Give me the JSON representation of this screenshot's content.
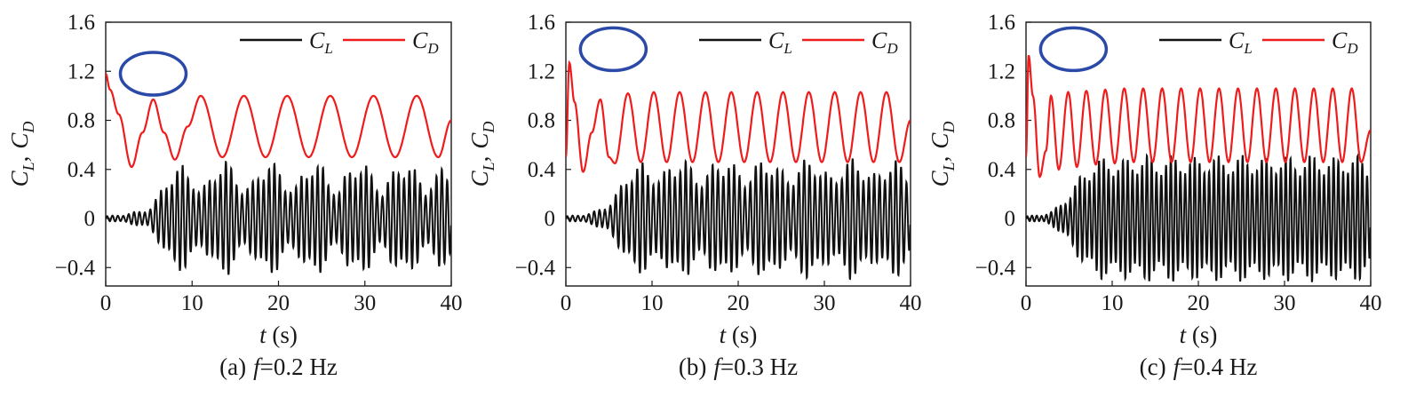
{
  "figure": {
    "panels": [
      {
        "caption_prefix": "(a)",
        "caption_var": "f",
        "caption_value": "=0.2  Hz",
        "ylabel_a": "C",
        "ylabel_a_sub": "L",
        "ylabel_sep": ",",
        "ylabel_b": "C",
        "ylabel_b_sub": "D",
        "xlabel_var": "t",
        "xlabel_unit": " (s)",
        "legend": [
          {
            "symbol": "C",
            "sub": "L",
            "color": "#111111"
          },
          {
            "symbol": "C",
            "sub": "D",
            "color": "#ee1c1c"
          }
        ]
      },
      {
        "caption_prefix": "(b)",
        "caption_var": "f",
        "caption_value": "=0.3 Hz",
        "ylabel_a": "C",
        "ylabel_a_sub": "L",
        "ylabel_sep": ",",
        "ylabel_b": "C",
        "ylabel_b_sub": "D",
        "xlabel_var": "t",
        "xlabel_unit": " (s)",
        "legend": [
          {
            "symbol": "C",
            "sub": "L",
            "color": "#111111"
          },
          {
            "symbol": "C",
            "sub": "D",
            "color": "#ee1c1c"
          }
        ]
      },
      {
        "caption_prefix": "(c)",
        "caption_var": "f",
        "caption_value": "=0.4 Hz",
        "ylabel_a": "C",
        "ylabel_a_sub": "L",
        "ylabel_sep": ",",
        "ylabel_b": "C",
        "ylabel_b_sub": "D",
        "xlabel_var": "t",
        "xlabel_unit": " (s)",
        "legend": [
          {
            "symbol": "C",
            "sub": "L",
            "color": "#111111"
          },
          {
            "symbol": "C",
            "sub": "D",
            "color": "#ee1c1c"
          }
        ]
      }
    ]
  },
  "chart_data": [
    {
      "type": "line",
      "xlim": [
        0,
        40
      ],
      "ylim": [
        -0.55,
        1.6
      ],
      "xticks": [
        0,
        10,
        20,
        30,
        40
      ],
      "xtick_labels": [
        "0",
        "10",
        "20",
        "30",
        "40"
      ],
      "yticks": [
        -0.4,
        0,
        0.4,
        0.8,
        1.2,
        1.6
      ],
      "ytick_labels": [
        "−0.4",
        "0",
        "0.4",
        "0.8",
        "1.2",
        "1.6"
      ],
      "grid": false,
      "legend_position": "top-right",
      "highlight_ellipse": {
        "center": [
          5.5,
          1.18
        ],
        "color": "#2b4aa8"
      },
      "series": [
        {
          "name": "C_D",
          "color": "#ee1c1c",
          "x": [
            0,
            0.5,
            1.5,
            3,
            4.25,
            5.5,
            6.75,
            8,
            9.5,
            11,
            13.5,
            16,
            18.5,
            21,
            23.5,
            26,
            28.5,
            31,
            33.5,
            36,
            38.5,
            40
          ],
          "y": [
            1.18,
            1.05,
            0.85,
            0.42,
            0.7,
            0.97,
            0.7,
            0.48,
            0.75,
            1.0,
            0.5,
            1.0,
            0.5,
            1.0,
            0.5,
            1.0,
            0.5,
            1.0,
            0.5,
            1.0,
            0.5,
            0.8
          ]
        },
        {
          "name": "C_L",
          "color": "#111111",
          "x": [
            0,
            2,
            3,
            4,
            5,
            6,
            7,
            8,
            9,
            10,
            11,
            12,
            13,
            14,
            15,
            16,
            17,
            18,
            19,
            20,
            21,
            22,
            23,
            24,
            25,
            26,
            27,
            28,
            29,
            30,
            31,
            32,
            33,
            34,
            35,
            36,
            37,
            38,
            39,
            40
          ],
          "y_amplitude": [
            0.02,
            0.03,
            0.05,
            0.06,
            0.08,
            0.18,
            0.32,
            0.42,
            0.44,
            0.36,
            0.22,
            0.34,
            0.46,
            0.48,
            0.38,
            0.24,
            0.3,
            0.44,
            0.48,
            0.42,
            0.28,
            0.26,
            0.42,
            0.48,
            0.44,
            0.3,
            0.24,
            0.4,
            0.48,
            0.46,
            0.34,
            0.24,
            0.36,
            0.46,
            0.47,
            0.38,
            0.26,
            0.32,
            0.44,
            0.4
          ],
          "oscillation_frequency_hz": 1.6
        }
      ]
    },
    {
      "type": "line",
      "xlim": [
        0,
        40
      ],
      "ylim": [
        -0.55,
        1.6
      ],
      "xticks": [
        0,
        10,
        20,
        30,
        40
      ],
      "xtick_labels": [
        "0",
        "10",
        "20",
        "30",
        "40"
      ],
      "yticks": [
        -0.4,
        0,
        0.4,
        0.8,
        1.2,
        1.6
      ],
      "ytick_labels": [
        "−0.4",
        "0",
        "0.4",
        "0.8",
        "1.2",
        "1.6"
      ],
      "grid": false,
      "legend_position": "top-right",
      "highlight_ellipse": {
        "center": [
          5.5,
          1.38
        ],
        "color": "#2b4aa8"
      },
      "series": [
        {
          "name": "C_D",
          "color": "#ee1c1c",
          "x": [
            0,
            0.4,
            1,
            2,
            3,
            4,
            5,
            5.7,
            7.2,
            8.7,
            10.2,
            11.7,
            13.2,
            14.7,
            16.2,
            17.7,
            19.2,
            20.7,
            22.2,
            23.7,
            25.2,
            26.7,
            28.2,
            29.7,
            31.2,
            32.7,
            34.2,
            35.7,
            37.2,
            38.7,
            40
          ],
          "y": [
            0.5,
            1.27,
            0.95,
            0.38,
            0.7,
            0.97,
            0.5,
            0.45,
            1.02,
            0.46,
            1.03,
            0.46,
            1.03,
            0.46,
            1.03,
            0.46,
            1.03,
            0.46,
            1.03,
            0.46,
            1.03,
            0.46,
            1.03,
            0.46,
            1.03,
            0.46,
            1.03,
            0.46,
            1.03,
            0.46,
            0.8
          ]
        },
        {
          "name": "C_L",
          "color": "#111111",
          "x": [
            0,
            2,
            3,
            4,
            5,
            6,
            7,
            8,
            9,
            10,
            11,
            12,
            13,
            14,
            15,
            16,
            17,
            18,
            19,
            20,
            21,
            22,
            23,
            24,
            25,
            26,
            27,
            28,
            29,
            30,
            31,
            32,
            33,
            34,
            35,
            36,
            37,
            38,
            39,
            40
          ],
          "y_amplitude": [
            0.02,
            0.03,
            0.05,
            0.08,
            0.12,
            0.22,
            0.36,
            0.44,
            0.46,
            0.4,
            0.34,
            0.44,
            0.5,
            0.48,
            0.38,
            0.34,
            0.44,
            0.5,
            0.48,
            0.4,
            0.34,
            0.44,
            0.5,
            0.48,
            0.4,
            0.34,
            0.44,
            0.5,
            0.48,
            0.4,
            0.34,
            0.44,
            0.5,
            0.48,
            0.4,
            0.36,
            0.44,
            0.5,
            0.44,
            0.36
          ],
          "oscillation_frequency_hz": 1.6
        }
      ]
    },
    {
      "type": "line",
      "xlim": [
        0,
        40
      ],
      "ylim": [
        -0.55,
        1.6
      ],
      "xticks": [
        0,
        10,
        20,
        30,
        40
      ],
      "xtick_labels": [
        "0",
        "10",
        "20",
        "30",
        "40"
      ],
      "yticks": [
        -0.4,
        0,
        0.4,
        0.8,
        1.2,
        1.6
      ],
      "ytick_labels": [
        "−0.4",
        "0",
        "0.4",
        "0.8",
        "1.2",
        "1.6"
      ],
      "grid": false,
      "legend_position": "top-right",
      "highlight_ellipse": {
        "center": [
          5.5,
          1.38
        ],
        "color": "#2b4aa8"
      },
      "series": [
        {
          "name": "C_D",
          "color": "#ee1c1c",
          "x": [
            0,
            0.3,
            0.8,
            1.6,
            2.3,
            2.9,
            3.8,
            4.9,
            5.9,
            7.0,
            8.1,
            9.2,
            10.3,
            11.4,
            12.5,
            13.6,
            14.7,
            15.8,
            16.9,
            18.0,
            19.1,
            20.2,
            21.3,
            22.4,
            23.5,
            24.6,
            25.7,
            26.8,
            27.9,
            29.0,
            30.1,
            31.2,
            32.3,
            33.4,
            34.5,
            35.6,
            36.7,
            37.8,
            38.9,
            40
          ],
          "y": [
            0.5,
            1.33,
            1.0,
            0.34,
            0.55,
            1.0,
            0.4,
            1.03,
            0.42,
            1.04,
            0.44,
            1.05,
            0.45,
            1.06,
            0.46,
            1.06,
            0.46,
            1.06,
            0.46,
            1.06,
            0.46,
            1.06,
            0.46,
            1.06,
            0.46,
            1.06,
            0.46,
            1.06,
            0.46,
            1.06,
            0.46,
            1.06,
            0.46,
            1.06,
            0.46,
            1.06,
            0.46,
            1.06,
            0.46,
            0.72
          ]
        },
        {
          "name": "C_L",
          "color": "#111111",
          "x": [
            0,
            2,
            3,
            4,
            5,
            6,
            7,
            8,
            9,
            10,
            11,
            12,
            13,
            14,
            15,
            16,
            17,
            18,
            19,
            20,
            21,
            22,
            23,
            24,
            25,
            26,
            27,
            28,
            29,
            30,
            31,
            32,
            33,
            34,
            35,
            36,
            37,
            38,
            39,
            40
          ],
          "y_amplitude": [
            0.02,
            0.03,
            0.06,
            0.12,
            0.2,
            0.32,
            0.42,
            0.48,
            0.5,
            0.5,
            0.48,
            0.5,
            0.52,
            0.52,
            0.5,
            0.5,
            0.52,
            0.52,
            0.5,
            0.5,
            0.52,
            0.52,
            0.5,
            0.5,
            0.52,
            0.52,
            0.5,
            0.5,
            0.52,
            0.52,
            0.5,
            0.5,
            0.52,
            0.52,
            0.5,
            0.5,
            0.52,
            0.52,
            0.5,
            0.46
          ],
          "oscillation_frequency_hz": 1.8
        }
      ]
    }
  ]
}
